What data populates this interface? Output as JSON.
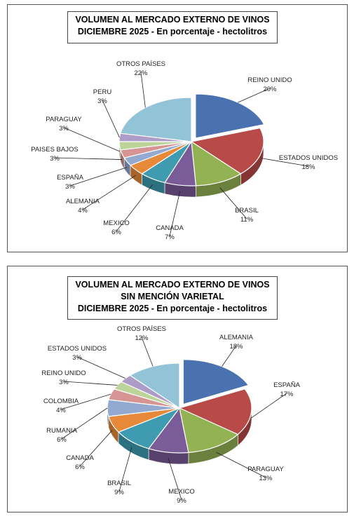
{
  "chart_data": [
    {
      "type": "pie",
      "title_lines": [
        "VOLUMEN AL MERCADO EXTERNO DE VINOS",
        "DICIEMBRE 2025 - En porcentaje - hectolitros"
      ],
      "slices": [
        {
          "label": "REINO UNIDO",
          "value": 20,
          "value_label": "20%",
          "color": "#4a72b0"
        },
        {
          "label": "ESTADOS UNIDOS",
          "value": 18,
          "value_label": "18%",
          "color": "#b84a48"
        },
        {
          "label": "BRASIL",
          "value": 11,
          "value_label": "11%",
          "color": "#93b253"
        },
        {
          "label": "CANADA",
          "value": 7,
          "value_label": "7%",
          "color": "#7a5c98"
        },
        {
          "label": "MEXICO",
          "value": 6,
          "value_label": "6%",
          "color": "#3f9bb0"
        },
        {
          "label": "ALEMANIA",
          "value": 4,
          "value_label": "4%",
          "color": "#e68a3a"
        },
        {
          "label": "ESPAÑA",
          "value": 3,
          "value_label": "3%",
          "color": "#93a9d0"
        },
        {
          "label": "PAISES BAJOS",
          "value": 3,
          "value_label": "3%",
          "color": "#d69593"
        },
        {
          "label": "PARAGUAY",
          "value": 3,
          "value_label": "3%",
          "color": "#bcd49a"
        },
        {
          "label": "PERU",
          "value": 3,
          "value_label": "3%",
          "color": "#ad9cc8"
        },
        {
          "label": "OTROS PAÍSES",
          "value": 22,
          "value_label": "22%",
          "color": "#93c3d6"
        }
      ]
    },
    {
      "type": "pie",
      "title_lines": [
        "VOLUMEN AL MERCADO EXTERNO DE VINOS",
        "SIN MENCIÓN VARIETAL",
        "DICIEMBRE 2025 - En porcentaje - hectolitros"
      ],
      "slices": [
        {
          "label": "ALEMANIA",
          "value": 18,
          "value_label": "18%",
          "color": "#4a72b0"
        },
        {
          "label": "ESPAÑA",
          "value": 17,
          "value_label": "17%",
          "color": "#b84a48"
        },
        {
          "label": "PARAGUAY",
          "value": 13,
          "value_label": "13%",
          "color": "#93b253"
        },
        {
          "label": "MEXICO",
          "value": 9,
          "value_label": "9%",
          "color": "#7a5c98"
        },
        {
          "label": "BRASIL",
          "value": 9,
          "value_label": "9%",
          "color": "#3f9bb0"
        },
        {
          "label": "CANADA",
          "value": 6,
          "value_label": "6%",
          "color": "#e68a3a"
        },
        {
          "label": "RUMANIA",
          "value": 6,
          "value_label": "6%",
          "color": "#93a9d0"
        },
        {
          "label": "COLOMBIA",
          "value": 4,
          "value_label": "4%",
          "color": "#d69593"
        },
        {
          "label": "REINO UNIDO",
          "value": 3,
          "value_label": "3%",
          "color": "#bcd49a"
        },
        {
          "label": "ESTADOS UNIDOS",
          "value": 3,
          "value_label": "3%",
          "color": "#ad9cc8"
        },
        {
          "label": "OTROS PAÍSES",
          "value": 12,
          "value_label": "12%",
          "color": "#93c3d6"
        }
      ]
    }
  ]
}
